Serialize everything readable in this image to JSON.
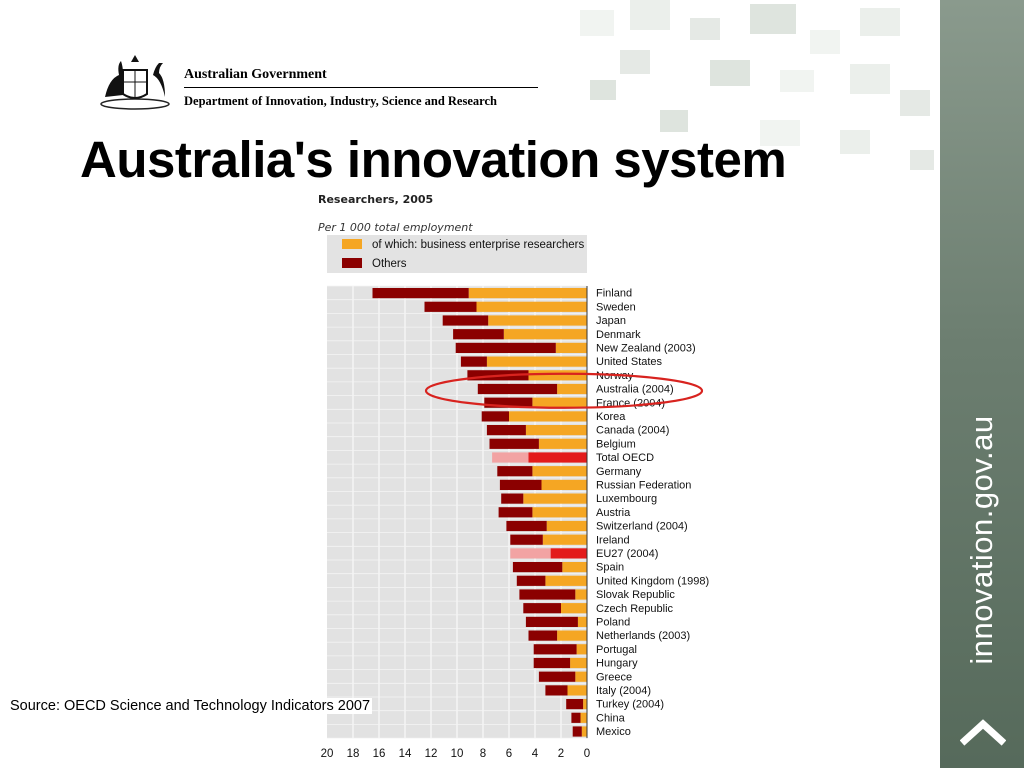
{
  "header": {
    "government": "Australian Government",
    "department": "Department of Innovation, Industry, Science and Research"
  },
  "title": "Australia's innovation system",
  "source": "Source: OECD Science and Technology Indicators 2007",
  "sidebar": {
    "site": "innovation.gov.au"
  },
  "colors": {
    "business": "#f5a623",
    "others": "#8b0000",
    "business_total": "#e31b1b",
    "others_total": "#f2a3a3",
    "highlight_ellipse": "#d8231f",
    "sidebar": "#6c7e70"
  },
  "chart_data": {
    "type": "bar",
    "orientation": "horizontal",
    "stacked": true,
    "title": "Researchers, 2005",
    "subtitle": "Per 1 000 total employment",
    "legend": [
      "of which: business enterprise researchers",
      "Others"
    ],
    "xlim": [
      0,
      20
    ],
    "x_reversed": true,
    "xticks": [
      20,
      18,
      16,
      14,
      12,
      10,
      8,
      6,
      4,
      2,
      0
    ],
    "categories": [
      "Finland",
      "Sweden",
      "Japan",
      "Denmark",
      "New Zealand (2003)",
      "United States",
      "Norway",
      "Australia (2004)",
      "France (2004)",
      "Korea",
      "Canada (2004)",
      "Belgium",
      "Total OECD",
      "Germany",
      "Russian Federation",
      "Luxembourg",
      "Austria",
      "Switzerland (2004)",
      "Ireland",
      "EU27 (2004)",
      "Spain",
      "United Kingdom (1998)",
      "Slovak Republic",
      "Czech Republic",
      "Poland",
      "Netherlands (2003)",
      "Portugal",
      "Hungary",
      "Greece",
      "Italy (2004)",
      "Turkey (2004)",
      "China",
      "Mexico"
    ],
    "series": [
      {
        "name": "of which: business enterprise researchers",
        "values": [
          9.1,
          8.5,
          7.6,
          6.4,
          2.4,
          7.7,
          4.5,
          2.3,
          4.2,
          6.0,
          4.7,
          3.7,
          4.5,
          4.2,
          3.5,
          4.9,
          4.2,
          3.1,
          3.4,
          2.8,
          1.9,
          3.2,
          0.9,
          2.0,
          0.7,
          2.3,
          0.8,
          1.3,
          0.9,
          1.5,
          0.3,
          0.5,
          0.4
        ]
      },
      {
        "name": "Others",
        "values": [
          7.4,
          4.0,
          3.5,
          3.9,
          7.7,
          2.0,
          4.7,
          6.1,
          3.7,
          2.1,
          3.0,
          3.8,
          2.8,
          2.7,
          3.2,
          1.7,
          2.6,
          3.1,
          2.5,
          3.1,
          3.8,
          2.2,
          4.3,
          2.9,
          4.0,
          2.2,
          3.3,
          2.8,
          2.8,
          1.7,
          1.3,
          0.7,
          0.7
        ]
      }
    ],
    "aggregates": [
      "Total OECD",
      "EU27 (2004)"
    ],
    "highlighted": "Australia (2004)",
    "grid": true
  }
}
